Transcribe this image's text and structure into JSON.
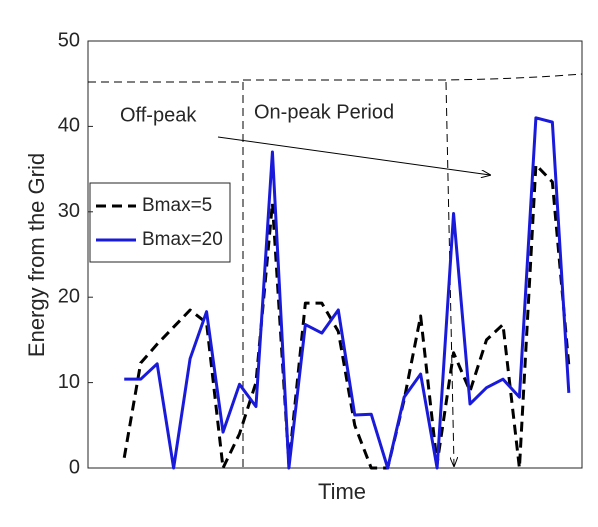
{
  "chart_data": {
    "type": "line",
    "xlabel": "Time",
    "ylabel": "Energy from the Grid",
    "annotations": [
      "Off-peak",
      "On-peak Period"
    ],
    "x": [
      1,
      2,
      3,
      4,
      5,
      6,
      7,
      8,
      9,
      10,
      11,
      12,
      13,
      14,
      15,
      16,
      17,
      18,
      19,
      20,
      21,
      22,
      23,
      24,
      25,
      26,
      27,
      28
    ],
    "xlim": [
      -1.2,
      28.8
    ],
    "ylim": [
      0,
      50
    ],
    "yticks": [
      0,
      10,
      20,
      30,
      40,
      50
    ],
    "grid": false,
    "legend": "west",
    "series": [
      {
        "name": "Bmax=5",
        "color": "#000000",
        "dash": true,
        "values": [
          1.2,
          12.3,
          14.5,
          16.5,
          18.5,
          17,
          0,
          4,
          10,
          31,
          0.5,
          19.3,
          19.3,
          16,
          5,
          0,
          0,
          8,
          17.8,
          0.5,
          13.5,
          9,
          15,
          16.8,
          0,
          35.5,
          33.5,
          12
        ]
      },
      {
        "name": "Bmax=20",
        "color": "#1a1adb",
        "dash": false,
        "values": [
          10.4,
          10.4,
          12.2,
          0,
          12.8,
          18.3,
          4.2,
          9.8,
          7.2,
          37,
          0,
          16.8,
          15.8,
          18.5,
          6.2,
          6.3,
          0,
          8.3,
          11,
          0,
          29.8,
          7.5,
          9.4,
          10.4,
          8.3,
          41,
          40.5,
          8.8
        ]
      }
    ]
  }
}
